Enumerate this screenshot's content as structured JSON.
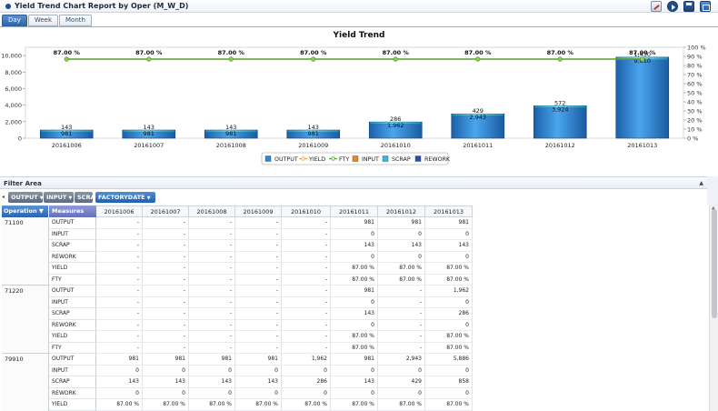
{
  "window": {
    "title": "Yield Trend Chart Report by Oper (M_W_D)"
  },
  "tabs": [
    {
      "label": "Day",
      "active": true
    },
    {
      "label": "Week",
      "active": false
    },
    {
      "label": "Month",
      "active": false
    }
  ],
  "chart_data": {
    "type": "bar",
    "title": "Yield Trend",
    "categories": [
      "20161006",
      "20161007",
      "20161008",
      "20161009",
      "20161010",
      "20161011",
      "20161012",
      "20161013"
    ],
    "ylim": [
      0,
      11000
    ],
    "yticks": [
      0,
      2000,
      4000,
      6000,
      8000,
      10000
    ],
    "ytick_labels": [
      "0",
      "2,000",
      "4,000",
      "6,000",
      "8,000",
      "10,000"
    ],
    "y2lim": [
      0,
      100
    ],
    "y2ticks": [
      0,
      10,
      20,
      30,
      40,
      50,
      60,
      70,
      80,
      90,
      100
    ],
    "y2tick_labels": [
      "0 %",
      "10 %",
      "20 %",
      "30 %",
      "40 %",
      "50 %",
      "60 %",
      "70 %",
      "80 %",
      "90 %",
      "100 %"
    ],
    "series": [
      {
        "name": "OUTPUT",
        "type": "bar",
        "color": "#2f87d6",
        "values": [
          981,
          981,
          981,
          981,
          1962,
          2943,
          3924,
          9810
        ],
        "labels": [
          "981",
          "981",
          "981",
          "981",
          "1,962",
          "2,943",
          "3,924",
          "9,810"
        ]
      },
      {
        "name": "YIELD",
        "type": "line",
        "color": "#f0a030",
        "axis": "right",
        "values": [
          87,
          87,
          87,
          87,
          87,
          87,
          87,
          87
        ]
      },
      {
        "name": "FTY",
        "type": "line",
        "color": "#5aa02c",
        "axis": "right",
        "values": [
          87,
          87,
          87,
          87,
          87,
          87,
          87,
          87
        ],
        "labels": [
          "87.00 %",
          "87.00 %",
          "87.00 %",
          "87.00 %",
          "87.00 %",
          "87.00 %",
          "87.00 %",
          "87.00 %"
        ]
      },
      {
        "name": "INPUT",
        "type": "bar",
        "color": "#e08a2c",
        "values": [
          0,
          0,
          0,
          0,
          0,
          0,
          0,
          0
        ]
      },
      {
        "name": "SCRAP",
        "type": "bar",
        "color": "#38b8d8",
        "values": [
          143,
          143,
          143,
          143,
          286,
          429,
          572,
          1430
        ],
        "labels": [
          "143",
          "143",
          "143",
          "143",
          "286",
          "429",
          "572",
          "1,430"
        ]
      },
      {
        "name": "REWORK",
        "type": "bar",
        "color": "#2a4fa8",
        "values": [
          0,
          0,
          0,
          0,
          0,
          0,
          0,
          0
        ]
      }
    ],
    "legend": [
      "OUTPUT",
      "YIELD",
      "FTY",
      "INPUT",
      "SCRAP",
      "REWORK"
    ],
    "legend_position": "bottom"
  },
  "filter": {
    "title": "Filter Area",
    "collapse_icon": "▲",
    "chips": [
      "OUTPUT",
      "INPUT",
      "SCRA"
    ],
    "column_field": "FACTORYDATE"
  },
  "grid": {
    "row_field": "Operation",
    "measure_field": "Measures",
    "dates": [
      "20161006",
      "20161007",
      "20161008",
      "20161009",
      "20161010",
      "20161011",
      "20161012",
      "20161013"
    ],
    "measures": [
      "OUTPUT",
      "INPUT",
      "SCRAP",
      "REWORK",
      "YIELD",
      "FTY"
    ],
    "operations": [
      {
        "op": "71100",
        "rows": [
          [
            "-",
            "-",
            "-",
            "-",
            "-",
            "981",
            "981",
            "981"
          ],
          [
            "-",
            "-",
            "-",
            "-",
            "-",
            "0",
            "0",
            "0"
          ],
          [
            "-",
            "-",
            "-",
            "-",
            "-",
            "143",
            "143",
            "143"
          ],
          [
            "-",
            "-",
            "-",
            "-",
            "-",
            "0",
            "0",
            "0"
          ],
          [
            "-",
            "-",
            "-",
            "-",
            "-",
            "87.00 %",
            "87.00 %",
            "87.00 %"
          ],
          [
            "-",
            "-",
            "-",
            "-",
            "-",
            "87.00 %",
            "87.00 %",
            "87.00 %"
          ]
        ]
      },
      {
        "op": "71220",
        "rows": [
          [
            "-",
            "-",
            "-",
            "-",
            "-",
            "981",
            "-",
            "1,962"
          ],
          [
            "-",
            "-",
            "-",
            "-",
            "-",
            "0",
            "-",
            "0"
          ],
          [
            "-",
            "-",
            "-",
            "-",
            "-",
            "143",
            "-",
            "286"
          ],
          [
            "-",
            "-",
            "-",
            "-",
            "-",
            "0",
            "-",
            "0"
          ],
          [
            "-",
            "-",
            "-",
            "-",
            "-",
            "87.00 %",
            "-",
            "87.00 %"
          ],
          [
            "-",
            "-",
            "-",
            "-",
            "-",
            "87.00 %",
            "-",
            "87.00 %"
          ]
        ]
      },
      {
        "op": "79910",
        "rows": [
          [
            "981",
            "981",
            "981",
            "981",
            "1,962",
            "981",
            "2,943",
            "5,886"
          ],
          [
            "0",
            "0",
            "0",
            "0",
            "0",
            "0",
            "0",
            "0"
          ],
          [
            "143",
            "143",
            "143",
            "143",
            "286",
            "143",
            "429",
            "858"
          ],
          [
            "0",
            "0",
            "0",
            "0",
            "0",
            "0",
            "0",
            "0"
          ],
          [
            "87.00 %",
            "87.00 %",
            "87.00 %",
            "87.00 %",
            "87.00 %",
            "87.00 %",
            "87.00 %",
            "87.00 %"
          ]
        ]
      }
    ]
  },
  "icons": [
    "app-dot-icon",
    "favorite-star-icon",
    "edit-icon",
    "run-icon",
    "save-icon",
    "export-icon"
  ]
}
